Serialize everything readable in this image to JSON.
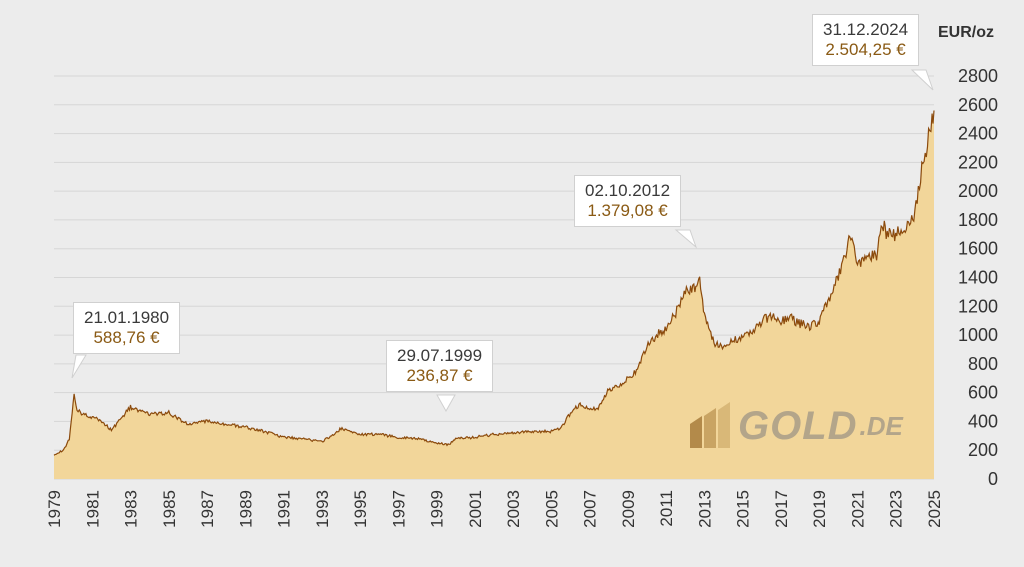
{
  "chart_data": {
    "type": "area",
    "ylabel": "EUR/oz",
    "ylim": [
      0,
      2800
    ],
    "yticks": [
      0,
      200,
      400,
      600,
      800,
      1000,
      1200,
      1400,
      1600,
      1800,
      2000,
      2200,
      2400,
      2600,
      2800
    ],
    "xlim": [
      1979,
      2025
    ],
    "xticks": [
      "1979",
      "1981",
      "1983",
      "1985",
      "1987",
      "1989",
      "1991",
      "1993",
      "1995",
      "1997",
      "1999",
      "2001",
      "2003",
      "2005",
      "2007",
      "2009",
      "2011",
      "2013",
      "2015",
      "2017",
      "2019",
      "2021",
      "2023",
      "2025"
    ],
    "grid": true,
    "series": [
      {
        "x": [
          1979.0,
          1979.5,
          1979.8,
          1980.05,
          1980.2,
          1980.5,
          1981.0,
          1981.5,
          1982.0,
          1982.5,
          1983.0,
          1983.5,
          1984.0,
          1985.0,
          1985.5,
          1986.0,
          1987.0,
          1988.0,
          1989.0,
          1990.0,
          1991.0,
          1992.0,
          1993.0,
          1993.5,
          1994.0,
          1995.0,
          1996.0,
          1997.0,
          1998.0,
          1999.0,
          1999.6,
          2000.0,
          2001.0,
          2002.0,
          2003.0,
          2004.0,
          2005.0,
          2005.5,
          2006.0,
          2006.5,
          2007.0,
          2007.5,
          2008.0,
          2008.5,
          2009.0,
          2009.5,
          2010.0,
          2010.5,
          2011.0,
          2011.5,
          2012.0,
          2012.5,
          2012.75,
          2013.0,
          2013.5,
          2014.0,
          2014.5,
          2015.0,
          2015.5,
          2016.0,
          2016.5,
          2017.0,
          2017.5,
          2018.0,
          2018.5,
          2019.0,
          2019.5,
          2020.0,
          2020.4,
          2020.6,
          2021.0,
          2021.5,
          2022.0,
          2022.3,
          2022.5,
          2023.0,
          2023.5,
          2024.0,
          2024.3,
          2024.6,
          2024.9,
          2025.0
        ],
        "y": [
          170,
          200,
          280,
          589,
          480,
          450,
          430,
          400,
          340,
          420,
          500,
          470,
          450,
          460,
          420,
          380,
          400,
          380,
          360,
          330,
          290,
          280,
          260,
          300,
          350,
          310,
          310,
          290,
          280,
          250,
          237,
          280,
          290,
          310,
          320,
          330,
          330,
          350,
          460,
          520,
          480,
          500,
          620,
          650,
          700,
          750,
          930,
          1000,
          1050,
          1150,
          1300,
          1330,
          1379,
          1150,
          950,
          900,
          960,
          1000,
          1020,
          1100,
          1130,
          1100,
          1120,
          1080,
          1060,
          1100,
          1250,
          1400,
          1550,
          1700,
          1500,
          1550,
          1550,
          1800,
          1700,
          1700,
          1750,
          1850,
          2100,
          2300,
          2504,
          2560
        ]
      }
    ]
  },
  "annotations": [
    {
      "date": "21.01.1980",
      "price": "588,76 €"
    },
    {
      "date": "29.07.1999",
      "price": "236,87 €"
    },
    {
      "date": "02.10.2012",
      "price": "1.379,08 €"
    },
    {
      "date": "31.12.2024",
      "price": "2.504,25 €"
    }
  ],
  "logo": {
    "text": "GOLD",
    "suffix": ".DE"
  },
  "colors": {
    "line": "#8b4a0c",
    "fill": "#f2d69a",
    "grid": "#d6d6d6",
    "logo": "#b3a58a"
  }
}
